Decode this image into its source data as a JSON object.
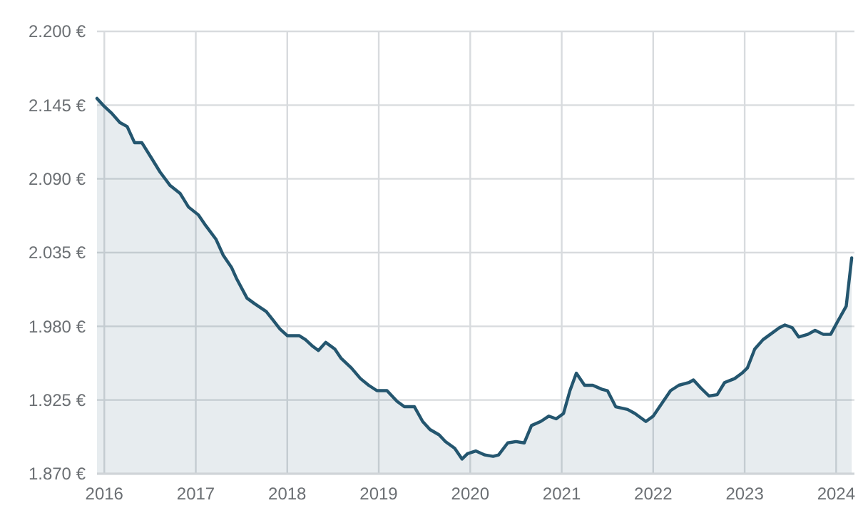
{
  "chart_data": {
    "type": "area",
    "grid": true,
    "marker": "none",
    "line_style": "solid",
    "xlim": [
      2015.92,
      2024.2
    ],
    "xticks": [
      2016,
      2017,
      2018,
      2019,
      2020,
      2021,
      2022,
      2023,
      2024
    ],
    "ylim": [
      1870,
      2200
    ],
    "yticks": [
      {
        "value": 1870,
        "label": "1.870 €"
      },
      {
        "value": 1925,
        "label": "1.925 €"
      },
      {
        "value": 1980,
        "label": "1.980 €"
      },
      {
        "value": 2035,
        "label": "2.035 €"
      },
      {
        "value": 2090,
        "label": "2.090 €"
      },
      {
        "value": 2145,
        "label": "2.145 €"
      },
      {
        "value": 2200,
        "label": "2.200 €"
      }
    ],
    "series": [
      {
        "color": "#24566f",
        "x": [
          2015.92,
          2016,
          2016.08,
          2016.17,
          2016.25,
          2016.33,
          2016.41,
          2016.52,
          2016.61,
          2016.72,
          2016.83,
          2016.92,
          2017.03,
          2017.11,
          2017.22,
          2017.3,
          2017.39,
          2017.45,
          2017.56,
          2017.64,
          2017.77,
          2017.84,
          2017.92,
          2018,
          2018.13,
          2018.2,
          2018.28,
          2018.34,
          2018.42,
          2018.52,
          2018.59,
          2018.7,
          2018.8,
          2018.89,
          2018.98,
          2019.09,
          2019.2,
          2019.28,
          2019.39,
          2019.48,
          2019.56,
          2019.66,
          2019.73,
          2019.83,
          2019.91,
          2019.97,
          2020.06,
          2020.16,
          2020.25,
          2020.31,
          2020.41,
          2020.5,
          2020.59,
          2020.67,
          2020.77,
          2020.86,
          2020.94,
          2021.02,
          2021.09,
          2021.16,
          2021.25,
          2021.34,
          2021.44,
          2021.5,
          2021.59,
          2021.72,
          2021.8,
          2021.92,
          2022,
          2022.11,
          2022.19,
          2022.28,
          2022.39,
          2022.44,
          2022.52,
          2022.61,
          2022.7,
          2022.78,
          2022.89,
          2022.97,
          2023.03,
          2023.11,
          2023.2,
          2023.28,
          2023.38,
          2023.44,
          2023.52,
          2023.59,
          2023.69,
          2023.77,
          2023.86,
          2023.94,
          2024.02,
          2024.11,
          2024.17
        ],
        "values": [
          2150,
          2144,
          2139,
          2132,
          2129,
          2117,
          2117,
          2105,
          2095,
          2085,
          2079,
          2069,
          2063,
          2055,
          2045,
          2033,
          2024,
          2015,
          2001,
          1997,
          1991,
          1985,
          1978,
          1973,
          1973,
          1970,
          1965,
          1962,
          1968,
          1963,
          1956,
          1949,
          1941,
          1936,
          1932,
          1932,
          1924,
          1920,
          1920,
          1909,
          1903,
          1899,
          1894,
          1889,
          1881,
          1885,
          1887,
          1884,
          1883,
          1884,
          1893,
          1894,
          1893,
          1906,
          1909,
          1913,
          1911,
          1915,
          1932,
          1945,
          1936,
          1936,
          1933,
          1932,
          1920,
          1918,
          1915,
          1909,
          1913,
          1924,
          1932,
          1936,
          1938,
          1940,
          1934,
          1928,
          1929,
          1938,
          1941,
          1945,
          1949,
          1963,
          1970,
          1974,
          1979,
          1981,
          1979,
          1972,
          1974,
          1977,
          1974,
          1974,
          1984,
          1995,
          2031
        ]
      }
    ]
  }
}
